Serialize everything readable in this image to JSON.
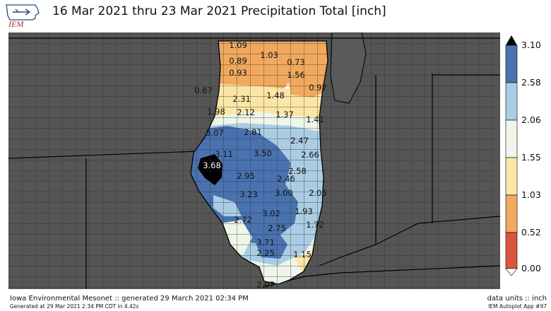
{
  "logo": {
    "text": "IEM"
  },
  "title": "16 Mar 2021 thru 23 Mar 2021 Precipitation Total [inch]",
  "colorbar": {
    "levels": [
      "3.10",
      "2.58",
      "2.06",
      "1.55",
      "1.03",
      "0.52",
      "0.00"
    ],
    "colors": [
      "#4a72b0",
      "#aacde3",
      "#eef5e9",
      "#fbe6a6",
      "#f1a95f",
      "#d9553b"
    ],
    "over_color": "#000000",
    "under_color": "#ffffff"
  },
  "map": {
    "background_color": "#555555",
    "county_line_color": "#2b2b2b",
    "state_line_color": "#000000",
    "lake_color": "#5b5b5b"
  },
  "chart_data": {
    "type": "heatmap",
    "title": "16 Mar 2021 thru 23 Mar 2021 Precipitation Total [inch]",
    "units": "inch",
    "labels": [
      {
        "value": "1.09"
      },
      {
        "value": "1.03"
      },
      {
        "value": "0.89"
      },
      {
        "value": "0.73"
      },
      {
        "value": "0.93"
      },
      {
        "value": "1.56"
      },
      {
        "value": "0.67"
      },
      {
        "value": "0.97"
      },
      {
        "value": "2.31"
      },
      {
        "value": "1.48"
      },
      {
        "value": "1.98"
      },
      {
        "value": "2.12"
      },
      {
        "value": "1.37"
      },
      {
        "value": "1.41"
      },
      {
        "value": "3.07"
      },
      {
        "value": "2.81"
      },
      {
        "value": "2.47"
      },
      {
        "value": "3.11"
      },
      {
        "value": "3.50"
      },
      {
        "value": "2.66"
      },
      {
        "value": "3.68"
      },
      {
        "value": "2.58"
      },
      {
        "value": "2.95"
      },
      {
        "value": "2.46"
      },
      {
        "value": "3.23"
      },
      {
        "value": "3.00"
      },
      {
        "value": "2.05"
      },
      {
        "value": "3.02"
      },
      {
        "value": "1.93"
      },
      {
        "value": "2.72"
      },
      {
        "value": "1.72"
      },
      {
        "value": "2.75"
      },
      {
        "value": "3.71"
      },
      {
        "value": "2.25"
      },
      {
        "value": "1.15"
      },
      {
        "value": "2.07"
      }
    ]
  },
  "footer": {
    "left_line1": "Iowa Environmental Mesonet :: generated 29 March 2021 02:34 PM",
    "left_line2": "Generated at 29 Mar 2021 2:34 PM CDT in 4.42s",
    "right_line1": "data units :: inch",
    "right_line2": "IEM Autoplot App #97"
  }
}
